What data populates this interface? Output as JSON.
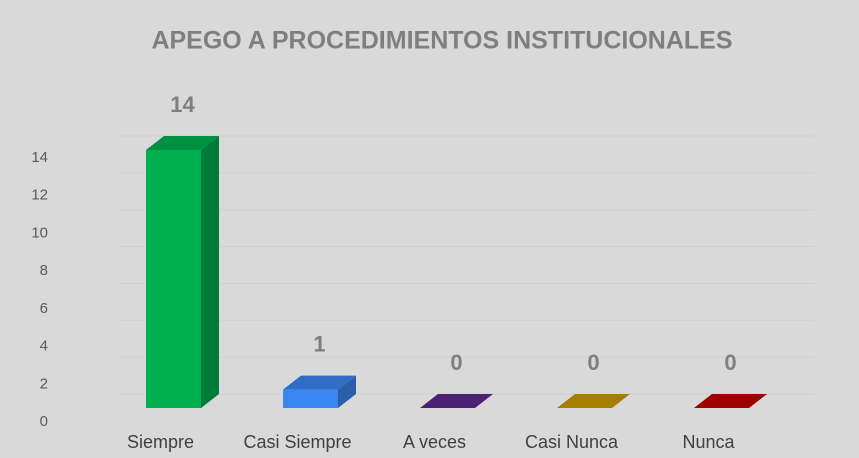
{
  "chart_data": {
    "type": "bar3d",
    "title": "APEGO A PROCEDIMIENTOS INSTITUCIONALES",
    "categories": [
      "Siempre",
      "Casi Siempre",
      "A veces",
      "Casi Nunca",
      "Nunca"
    ],
    "values": [
      14,
      1,
      0,
      0,
      0
    ],
    "colors": [
      "#00b050",
      "#3a86f0",
      "#5b2a8c",
      "#c99a00",
      "#c00000"
    ],
    "ylim": [
      0,
      16
    ],
    "yticks": [
      0,
      2,
      4,
      6,
      8,
      10,
      12,
      14
    ],
    "grid": true,
    "data_labels": true
  }
}
